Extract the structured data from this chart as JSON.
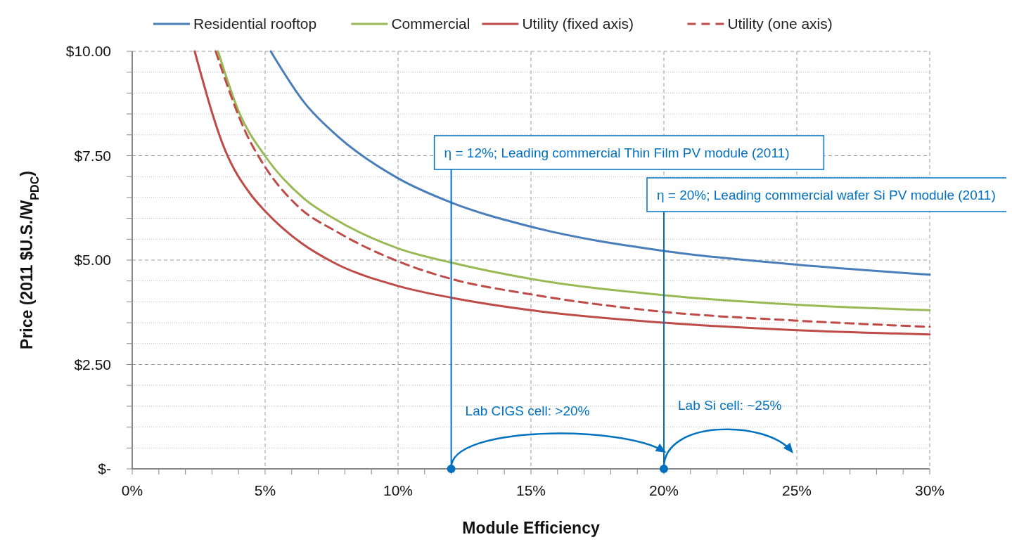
{
  "chart_data": {
    "type": "line",
    "xlabel": "Module Efficiency",
    "ylabel": "Price (2011 $U.S./W$_{PDC}$)",
    "xlim": [
      0,
      30
    ],
    "xticks": [
      {
        "value": 0,
        "label": "0%"
      },
      {
        "value": 1,
        "label": null
      },
      {
        "value": 2,
        "label": null
      },
      {
        "value": 3,
        "label": null
      },
      {
        "value": 4,
        "label": null
      },
      {
        "value": 5,
        "label": "5%"
      },
      {
        "value": 6,
        "label": null
      },
      {
        "value": 7,
        "label": null
      },
      {
        "value": 8,
        "label": null
      },
      {
        "value": 9,
        "label": null
      },
      {
        "value": 10,
        "label": "10%"
      },
      {
        "value": 11,
        "label": null
      },
      {
        "value": 12,
        "label": null
      },
      {
        "value": 13,
        "label": null
      },
      {
        "value": 14,
        "label": null
      },
      {
        "value": 15,
        "label": "15%"
      },
      {
        "value": 16,
        "label": null
      },
      {
        "value": 17,
        "label": null
      },
      {
        "value": 18,
        "label": null
      },
      {
        "value": 19,
        "label": null
      },
      {
        "value": 20,
        "label": "20%"
      },
      {
        "value": 21,
        "label": null
      },
      {
        "value": 22,
        "label": null
      },
      {
        "value": 23,
        "label": null
      },
      {
        "value": 24,
        "label": null
      },
      {
        "value": 25,
        "label": "25%"
      },
      {
        "value": 26,
        "label": null
      },
      {
        "value": 27,
        "label": null
      },
      {
        "value": 28,
        "label": null
      },
      {
        "value": 29,
        "label": null
      },
      {
        "value": 30,
        "label": "30%"
      }
    ],
    "ylim": [
      0,
      10
    ],
    "yticks": [
      {
        "value": 0,
        "label": "$-"
      },
      {
        "value": 0.5,
        "label": null
      },
      {
        "value": 1,
        "label": null
      },
      {
        "value": 1.5,
        "label": null
      },
      {
        "value": 2,
        "label": null
      },
      {
        "value": 2.5,
        "label": "$2.50"
      },
      {
        "value": 3,
        "label": null
      },
      {
        "value": 3.5,
        "label": null
      },
      {
        "value": 4,
        "label": null
      },
      {
        "value": 4.5,
        "label": null
      },
      {
        "value": 5,
        "label": "$5.00"
      },
      {
        "value": 5.5,
        "label": null
      },
      {
        "value": 6,
        "label": null
      },
      {
        "value": 6.5,
        "label": null
      },
      {
        "value": 7,
        "label": null
      },
      {
        "value": 7.5,
        "label": "$7.50"
      },
      {
        "value": 8,
        "label": null
      },
      {
        "value": 8.5,
        "label": null
      },
      {
        "value": 9,
        "label": null
      },
      {
        "value": 9.5,
        "label": null
      },
      {
        "value": 10,
        "label": "$10.00"
      }
    ],
    "grid": true,
    "legend": "top",
    "marker": "none",
    "series": [
      {
        "name": "Residential rooftop",
        "color": "#4a7ebb",
        "x": [
          5.21,
          6.49,
          7.72,
          10,
          12,
          15,
          20,
          25,
          30
        ],
        "values": [
          10,
          8.76,
          7.97,
          6.96,
          6.38,
          5.8,
          5.22,
          4.89,
          4.65
        ]
      },
      {
        "name": "Commercial",
        "color": "#98b954",
        "x": [
          3.23,
          4.02,
          4.99,
          6.49,
          7.55,
          10,
          12,
          15,
          20,
          25,
          30
        ],
        "values": [
          10,
          8.54,
          7.5,
          6.46,
          6.01,
          5.28,
          4.94,
          4.55,
          4.16,
          3.93,
          3.8
        ]
      },
      {
        "name": "Utility (fixed axis)",
        "color": "#be4b48",
        "x": [
          2.35,
          3.49,
          4.46,
          4.99,
          6.4,
          7.55,
          10,
          12,
          15,
          20,
          25,
          30
        ],
        "values": [
          10,
          7.64,
          6.57,
          6.18,
          5.39,
          4.95,
          4.38,
          4.1,
          3.8,
          3.5,
          3.32,
          3.22
        ]
      },
      {
        "name": "Utility (one axis)",
        "color": "#be4b48",
        "line_style": "dashed",
        "x": [
          3.14,
          4.29,
          4.99,
          6.23,
          7.72,
          10,
          12,
          15,
          20,
          25,
          30
        ],
        "values": [
          10,
          8.03,
          7.24,
          6.29,
          5.67,
          4.97,
          4.55,
          4.18,
          3.76,
          3.55,
          3.4
        ]
      }
    ],
    "annotations": [
      {
        "text": "η = 12%; Leading commercial Thin Film PV module (2011)",
        "x": 12,
        "y": 0
      },
      {
        "text": "η = 20%; Leading commercial wafer Si PV module (2011)",
        "x": 20,
        "y": 0
      },
      "Lab CIGS cell: >20%",
      "Lab Si cell: ~25%"
    ]
  }
}
